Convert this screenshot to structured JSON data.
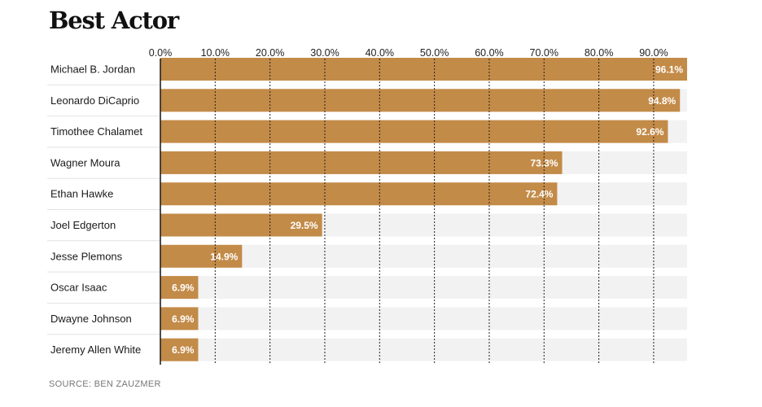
{
  "chart_data": {
    "type": "bar",
    "orientation": "horizontal",
    "title": "Best Actor",
    "categories": [
      "Michael B. Jordan",
      "Leonardo DiCaprio",
      "Timothee Chalamet",
      "Wagner Moura",
      "Ethan Hawke",
      "Joel Edgerton",
      "Jesse Plemons",
      "Oscar Isaac",
      "Dwayne Johnson",
      "Jeremy Allen White"
    ],
    "values": [
      96.1,
      94.8,
      92.6,
      73.3,
      72.4,
      29.5,
      14.9,
      6.9,
      6.9,
      6.9
    ],
    "value_labels": [
      "96.1%",
      "94.8%",
      "92.6%",
      "73.3%",
      "72.4%",
      "29.5%",
      "14.9%",
      "6.9%",
      "6.9%",
      "6.9%"
    ],
    "x_ticks": [
      0,
      10,
      20,
      30,
      40,
      50,
      60,
      70,
      80,
      90
    ],
    "x_tick_labels": [
      "0.0%",
      "10.0%",
      "20.0%",
      "30.0%",
      "40.0%",
      "50.0%",
      "60.0%",
      "70.0%",
      "80.0%",
      "90.0%"
    ],
    "xlim": [
      0,
      96.1
    ],
    "xlabel": "",
    "ylabel": "",
    "source": "SOURCE: BEN ZAUZMER",
    "colors": {
      "bar": "#C38B48",
      "track": "#F2F2F2",
      "gridline": "#222222",
      "value_text": "#FFFFFF"
    }
  }
}
